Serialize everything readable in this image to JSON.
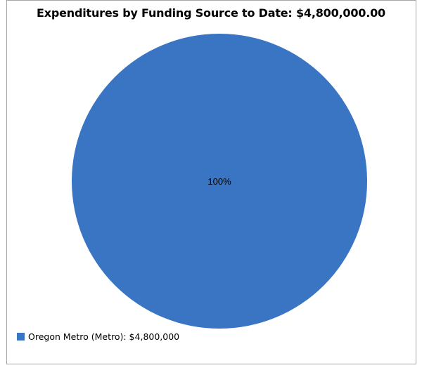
{
  "chart_data": {
    "type": "pie",
    "title": "Expenditures by Funding Source to Date: $4,800,000.00",
    "slices": [
      {
        "name": "Oregon Metro (Metro)",
        "value": 4800000,
        "percent_label": "100%",
        "legend_label": "Oregon Metro (Metro): $4,800,000",
        "color": "#3a75c4"
      }
    ],
    "legend_position": "bottom-left"
  }
}
